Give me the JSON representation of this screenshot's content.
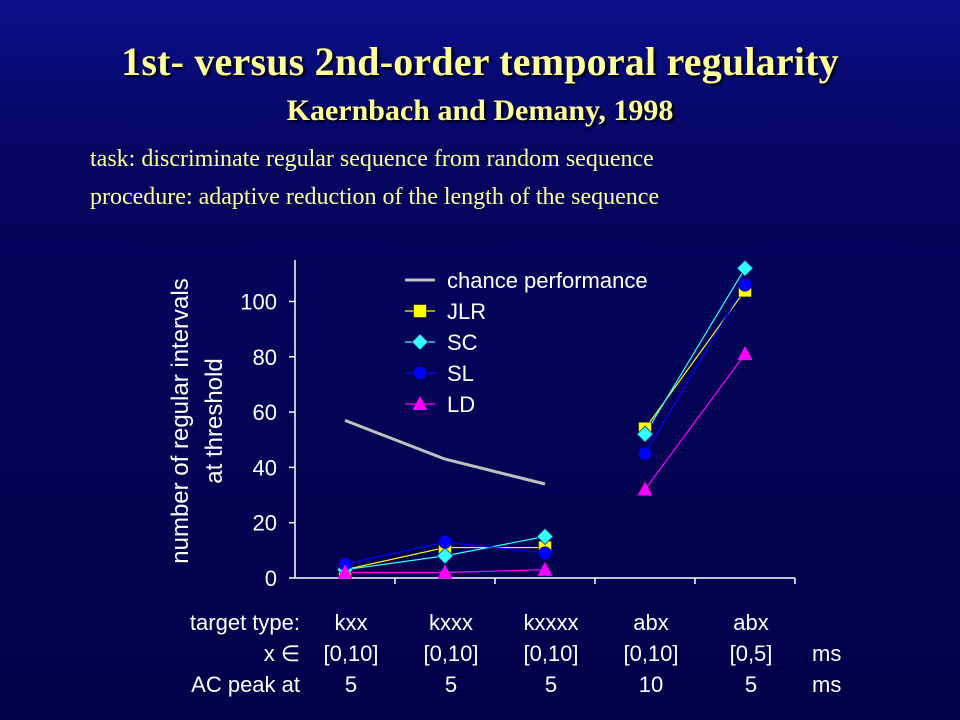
{
  "slide": {
    "title": "1st- versus 2nd-order temporal regularity",
    "subtitle": "Kaernbach and Demany, 1998",
    "task_line": "task: discriminate regular sequence from random sequence",
    "procedure_line": "procedure: adaptive reduction of the length of the sequence"
  },
  "colors": {
    "background": "#02024a",
    "heading": "#ffff99",
    "text": "#ffffff",
    "chance": "#c0c0c0",
    "JLR": "#ffff00",
    "SC": "#33ffff",
    "SL": "#0000ff",
    "LD": "#ff00ff"
  },
  "chart_data": {
    "type": "line",
    "ylabel": "number of regular intervals at threshold",
    "ylabel_lines": [
      "number of regular intervals",
      "at threshold"
    ],
    "ylim": [
      0,
      115
    ],
    "yticks": [
      0,
      20,
      40,
      60,
      80,
      100
    ],
    "categories": [
      "kxx",
      "kxxx",
      "kxxxx",
      "abx",
      "abx"
    ],
    "line_breaks_after_index": 2,
    "legend_position": "top-center",
    "series": [
      {
        "name": "chance performance",
        "marker": "none",
        "values": [
          57,
          43,
          34,
          null,
          null
        ]
      },
      {
        "name": "JLR",
        "marker": "square",
        "values": [
          3,
          11,
          11,
          54,
          104
        ]
      },
      {
        "name": "SC",
        "marker": "diamond",
        "values": [
          3,
          8,
          15,
          52,
          112
        ]
      },
      {
        "name": "SL",
        "marker": "circle",
        "values": [
          5,
          13,
          9,
          45,
          106
        ]
      },
      {
        "name": "LD",
        "marker": "triangle",
        "values": [
          2,
          2,
          3,
          32,
          81
        ]
      }
    ]
  },
  "table": {
    "rows": [
      {
        "label": "target type:",
        "values": [
          "kxx",
          "kxxx",
          "kxxxx",
          "abx",
          "abx"
        ],
        "unit": ""
      },
      {
        "label": "x ∈",
        "values": [
          "[0,10]",
          "[0,10]",
          "[0,10]",
          "[0,10]",
          "[0,5]"
        ],
        "unit": "ms"
      },
      {
        "label": "AC peak at",
        "values": [
          "5",
          "5",
          "5",
          "10",
          "5"
        ],
        "unit": "ms"
      }
    ]
  }
}
